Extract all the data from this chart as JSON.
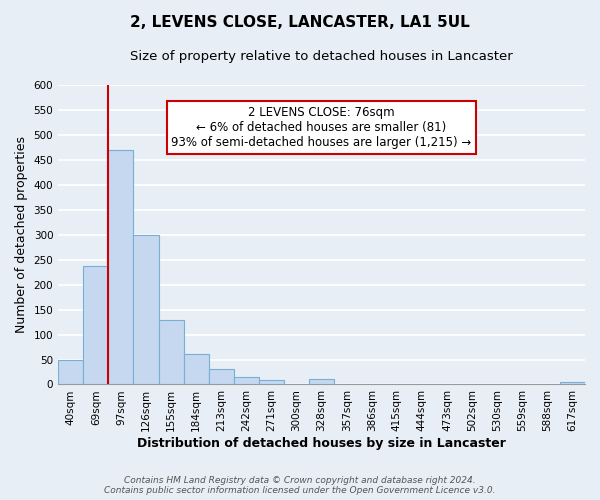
{
  "title": "2, LEVENS CLOSE, LANCASTER, LA1 5UL",
  "subtitle": "Size of property relative to detached houses in Lancaster",
  "xlabel": "Distribution of detached houses by size in Lancaster",
  "ylabel": "Number of detached properties",
  "bar_labels": [
    "40sqm",
    "69sqm",
    "97sqm",
    "126sqm",
    "155sqm",
    "184sqm",
    "213sqm",
    "242sqm",
    "271sqm",
    "300sqm",
    "328sqm",
    "357sqm",
    "386sqm",
    "415sqm",
    "444sqm",
    "473sqm",
    "502sqm",
    "530sqm",
    "559sqm",
    "588sqm",
    "617sqm"
  ],
  "bar_values": [
    50,
    238,
    470,
    300,
    130,
    62,
    30,
    15,
    8,
    0,
    10,
    0,
    0,
    0,
    0,
    0,
    0,
    0,
    0,
    0,
    5
  ],
  "bar_color": "#c5d8f0",
  "bar_edge_color": "#7aafd4",
  "ylim": [
    0,
    600
  ],
  "yticks": [
    0,
    50,
    100,
    150,
    200,
    250,
    300,
    350,
    400,
    450,
    500,
    550,
    600
  ],
  "vline_x_index": 1,
  "vline_color": "#cc0000",
  "annotation_line1": "2 LEVENS CLOSE: 76sqm",
  "annotation_line2": "← 6% of detached houses are smaller (81)",
  "annotation_line3": "93% of semi-detached houses are larger (1,215) →",
  "annotation_box_color": "#ffffff",
  "annotation_box_edge": "#cc0000",
  "footer_line1": "Contains HM Land Registry data © Crown copyright and database right 2024.",
  "footer_line2": "Contains public sector information licensed under the Open Government Licence v3.0.",
  "background_color": "#e8eef5",
  "plot_bg_color": "#e8eef5",
  "grid_color": "#ffffff",
  "title_fontsize": 11,
  "subtitle_fontsize": 9.5,
  "tick_fontsize": 7.5,
  "ylabel_fontsize": 9,
  "xlabel_fontsize": 9,
  "footer_fontsize": 6.5
}
